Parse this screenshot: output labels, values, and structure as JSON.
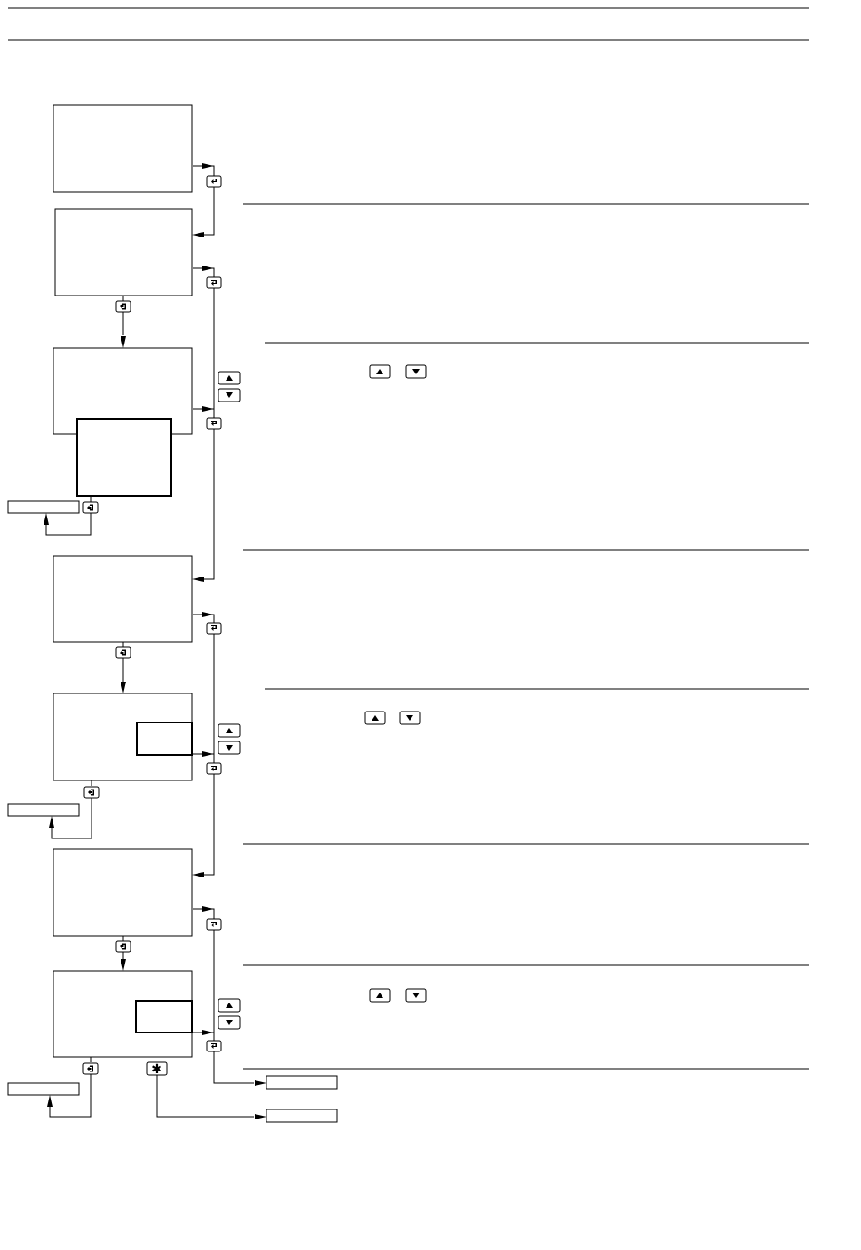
{
  "document": {
    "description_text": "",
    "sections": []
  },
  "icons": {
    "enter_key": "enter-key-icon",
    "exit_key": "exit-key-icon",
    "up_key": "up-arrow-key-icon",
    "down_key": "down-arrow-key-icon",
    "star_key": "star-key-icon"
  },
  "colors": {
    "ink": "#000000",
    "paper": "#ffffff"
  }
}
